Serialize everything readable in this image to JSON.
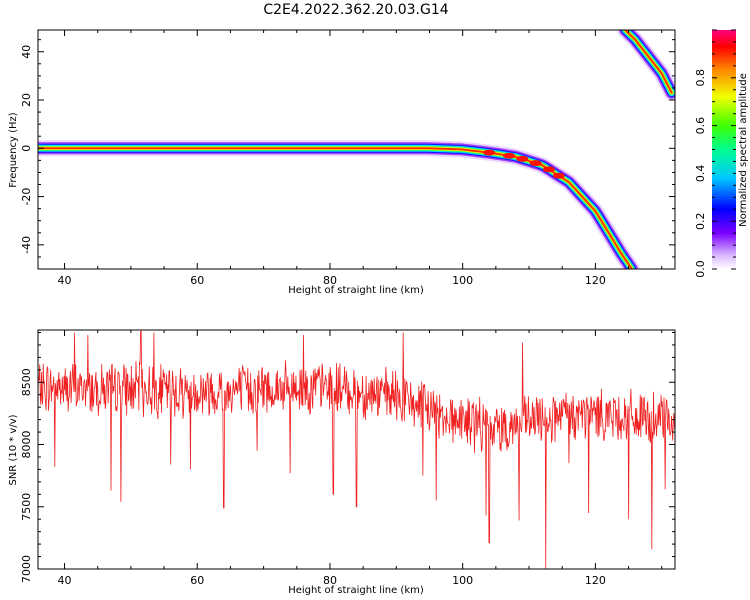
{
  "title": "C2E4.2022.362.20.03.G14",
  "colors": {
    "snr_line": "#f02020",
    "background": "#ffffff",
    "axis": "#000000"
  },
  "chart_data": [
    {
      "type": "heatmap",
      "xlabel": "Height of straight line (km)",
      "ylabel": "Frequency (Hz)",
      "xlim": [
        36,
        132
      ],
      "ylim": [
        -50,
        49
      ],
      "xticks": [
        "40",
        "60",
        "80",
        "100",
        "120"
      ],
      "yticks": [
        "-40",
        "-20",
        "0",
        "20",
        "40"
      ],
      "colorbar": {
        "label": "Normalized spectral amplitude",
        "range": [
          0,
          1
        ],
        "ticks": [
          "0.0",
          "0.2",
          "0.4",
          "0.6",
          "0.8"
        ],
        "colormap": "rainbow"
      },
      "traces": [
        {
          "x": [
            36,
            50,
            70,
            90,
            95,
            100,
            104,
            108,
            112,
            116,
            120,
            124,
            125.5
          ],
          "y": [
            0,
            0,
            0,
            0,
            0,
            -0.5,
            -1.8,
            -3.5,
            -7,
            -14,
            -26,
            -44,
            -50
          ]
        },
        {
          "x": [
            124.5,
            126,
            128,
            130,
            131.5
          ],
          "y": [
            49,
            45,
            38,
            31,
            23
          ]
        }
      ]
    },
    {
      "type": "line",
      "xlabel": "Height of straight line (km)",
      "ylabel": "SNR (10 * v/v)",
      "xlim": [
        36,
        132
      ],
      "ylim": [
        7000,
        8920
      ],
      "xticks": [
        "40",
        "60",
        "80",
        "100",
        "120"
      ],
      "yticks": [
        "7000",
        "7500",
        "8000",
        "8500"
      ],
      "series": [
        {
          "x_start": 36,
          "x_end": 132,
          "points": 1100,
          "baseline": [
            [
              36,
              8460
            ],
            [
              60,
              8430
            ],
            [
              80,
              8460
            ],
            [
              90,
              8380
            ],
            [
              100,
              8190
            ],
            [
              105,
              8130
            ],
            [
              112,
              8200
            ],
            [
              120,
              8250
            ],
            [
              132,
              8180
            ]
          ],
          "noise_amplitude": 180,
          "spikes": [
            {
              "x": 38.5,
              "y": 7820
            },
            {
              "x": 41.5,
              "y": 8900
            },
            {
              "x": 43.5,
              "y": 8880
            },
            {
              "x": 47,
              "y": 7630
            },
            {
              "x": 48.5,
              "y": 7540
            },
            {
              "x": 51.5,
              "y": 8910
            },
            {
              "x": 53.5,
              "y": 8900
            },
            {
              "x": 56,
              "y": 7840
            },
            {
              "x": 59,
              "y": 7800
            },
            {
              "x": 64,
              "y": 7490
            },
            {
              "x": 69,
              "y": 7950
            },
            {
              "x": 74,
              "y": 7770
            },
            {
              "x": 76,
              "y": 8880
            },
            {
              "x": 80.5,
              "y": 7600
            },
            {
              "x": 84,
              "y": 7500
            },
            {
              "x": 91,
              "y": 8900
            },
            {
              "x": 94,
              "y": 7750
            },
            {
              "x": 96,
              "y": 7550
            },
            {
              "x": 103.5,
              "y": 7430
            },
            {
              "x": 104,
              "y": 7210
            },
            {
              "x": 108.5,
              "y": 7390
            },
            {
              "x": 109,
              "y": 8820
            },
            {
              "x": 112.5,
              "y": 7000
            },
            {
              "x": 116,
              "y": 7850
            },
            {
              "x": 119,
              "y": 7450
            },
            {
              "x": 125,
              "y": 7400
            },
            {
              "x": 128.5,
              "y": 7160
            },
            {
              "x": 130.5,
              "y": 7640
            }
          ]
        }
      ]
    }
  ]
}
